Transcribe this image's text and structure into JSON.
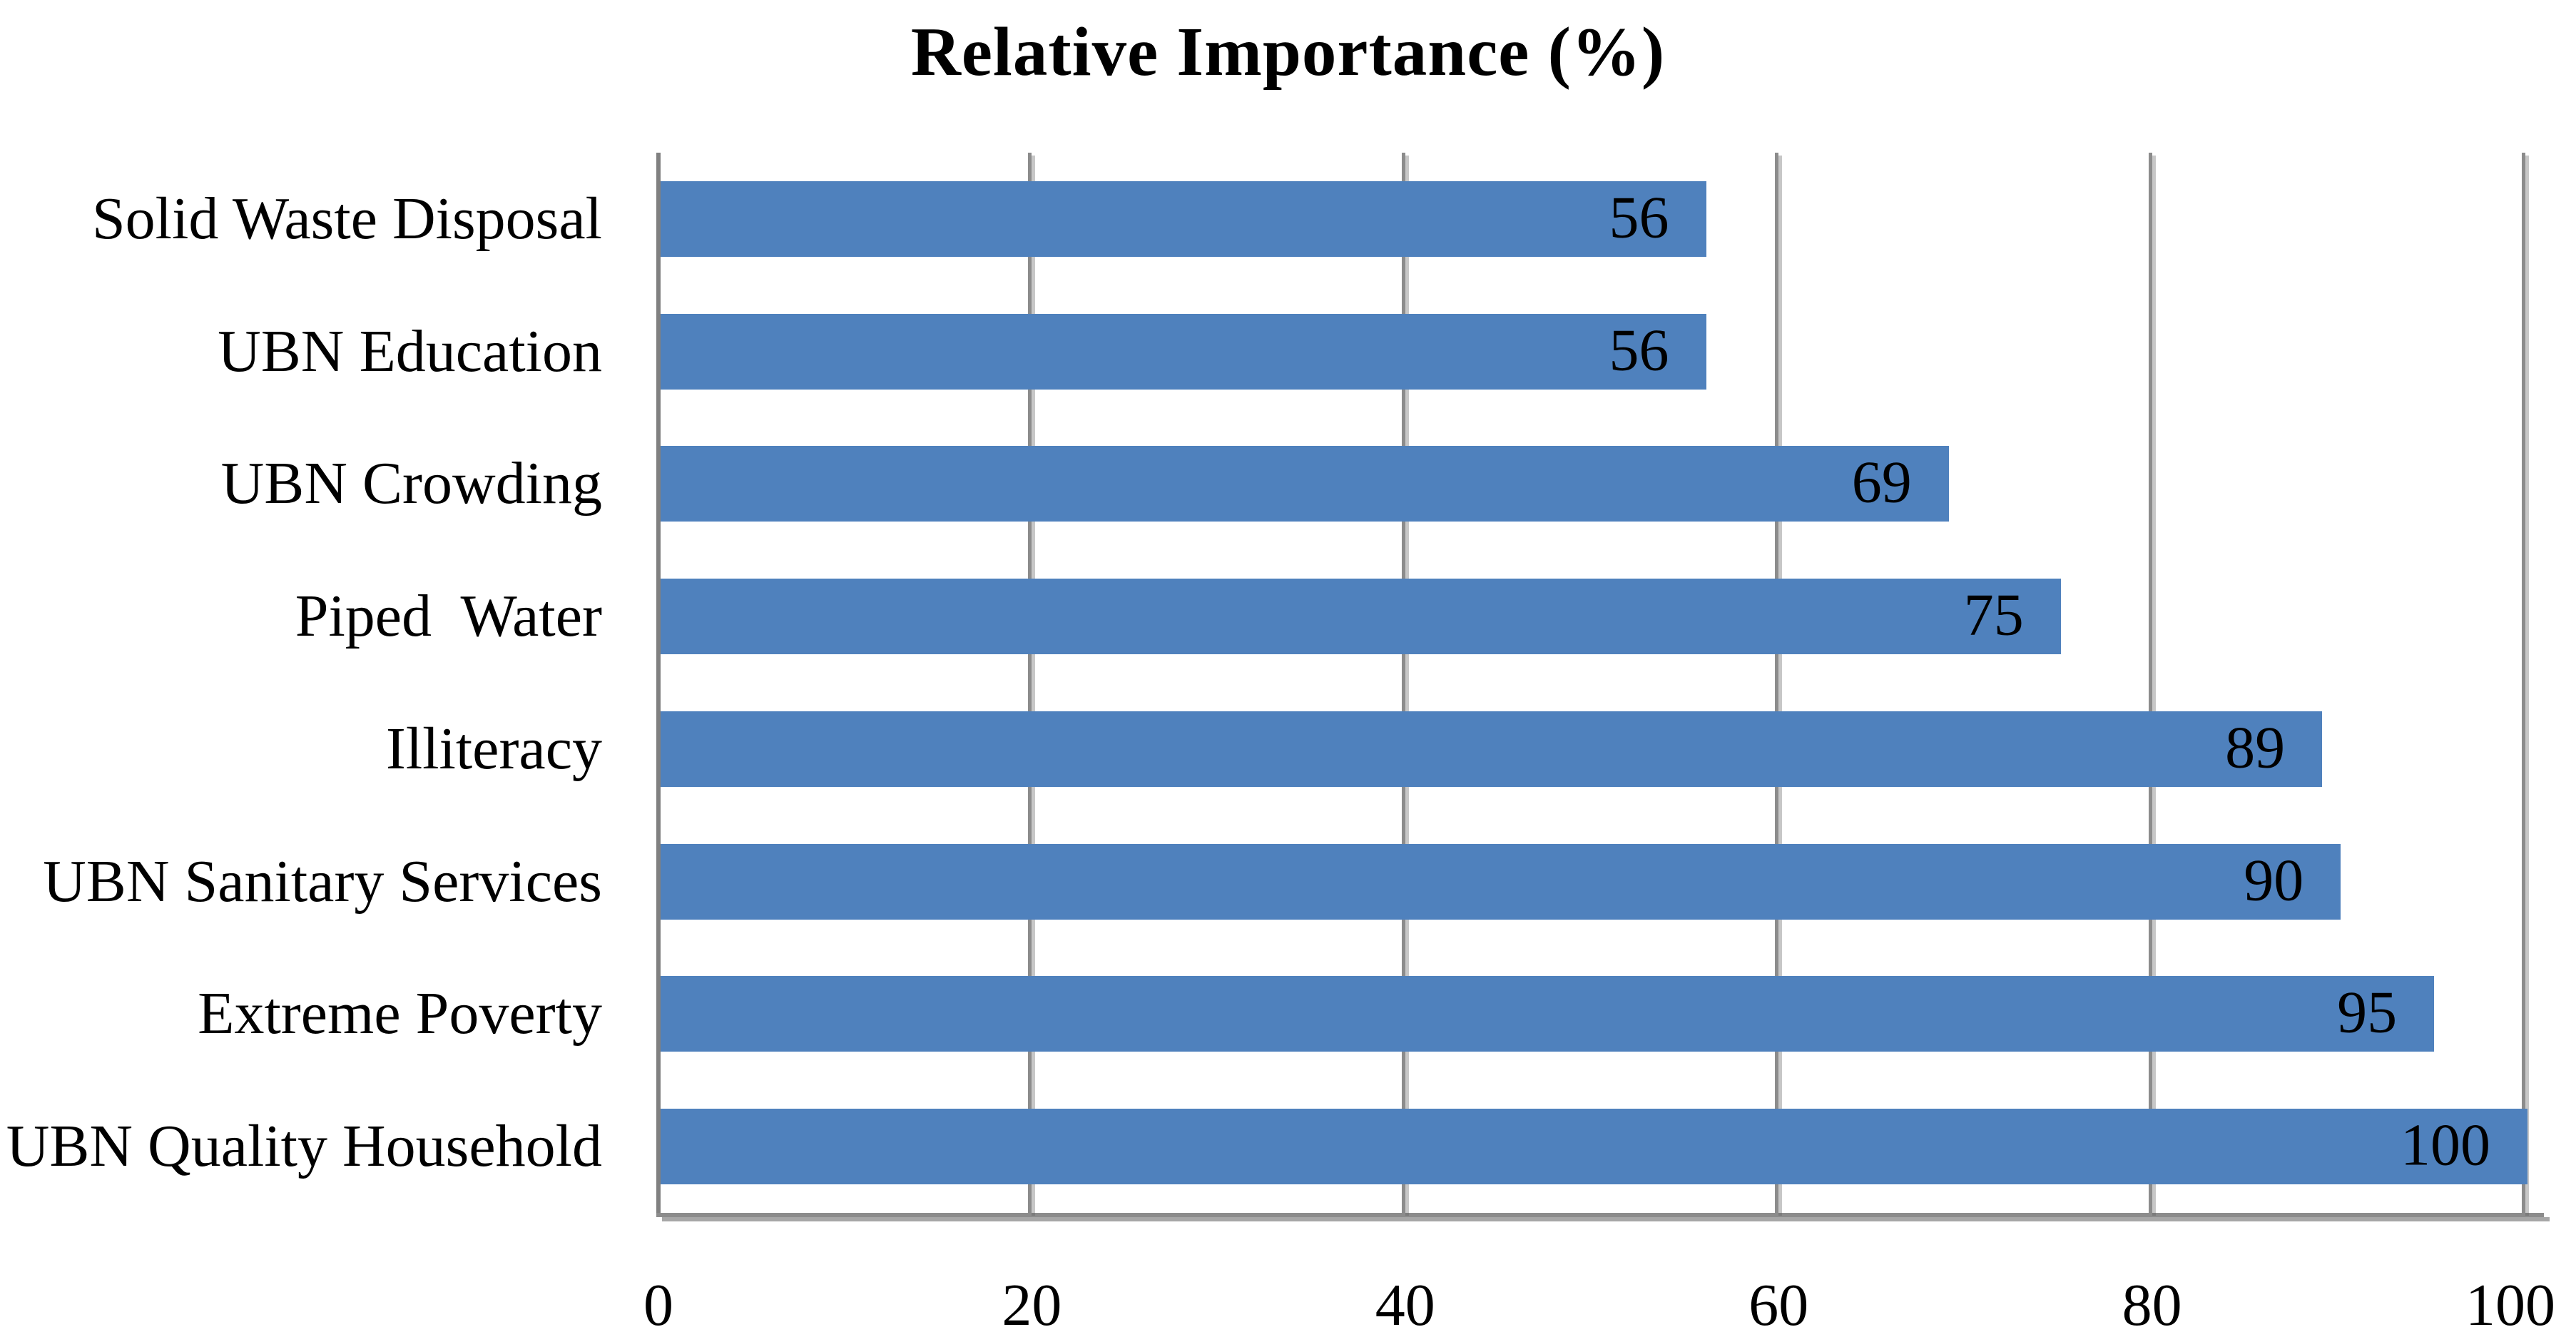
{
  "chart_data": {
    "type": "bar",
    "orientation": "horizontal",
    "title": "Relative Importance (%)",
    "categories": [
      "Solid Waste Disposal",
      "UBN Education",
      "UBN Crowding",
      "Piped  Water",
      "Illiteracy",
      "UBN Sanitary Services",
      "Extreme Poverty",
      "UBN Quality Household"
    ],
    "values": [
      56,
      56,
      69,
      75,
      89,
      90,
      95,
      100
    ],
    "x_tick_labels": [
      "0",
      "20",
      "40",
      "60",
      "80",
      "100"
    ],
    "x_tick_values": [
      0,
      20,
      40,
      60,
      80,
      100
    ],
    "xlim": [
      0,
      100
    ],
    "grid": true,
    "legend": "none",
    "data_labels_position": "inside-end",
    "colors": {
      "bar": "#4F81BD",
      "gridline": "#8C8C8C",
      "axis": "#808080",
      "text": "#000000",
      "background": "#FFFFFF"
    }
  }
}
